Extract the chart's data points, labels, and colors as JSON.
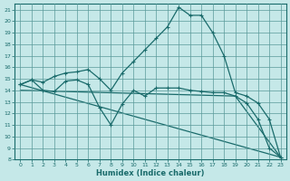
{
  "xlabel": "Humidex (Indice chaleur)",
  "background_color": "#c5e8e8",
  "grid_color": "#5a9a9a",
  "line_color": "#1a6b6b",
  "xlim": [
    -0.5,
    23.5
  ],
  "ylim": [
    8,
    21.5
  ],
  "yticks": [
    8,
    9,
    10,
    11,
    12,
    13,
    14,
    15,
    16,
    17,
    18,
    19,
    20,
    21
  ],
  "xticks": [
    0,
    1,
    2,
    3,
    4,
    5,
    6,
    7,
    8,
    9,
    10,
    11,
    12,
    13,
    14,
    15,
    16,
    17,
    18,
    19,
    20,
    21,
    22,
    23
  ],
  "series1_x": [
    0,
    1,
    2,
    3,
    4,
    5,
    6,
    7,
    8,
    9,
    10,
    11,
    12,
    13,
    14,
    15,
    16,
    17,
    18,
    19,
    20,
    21,
    22,
    23
  ],
  "series1_y": [
    14.5,
    14.9,
    14.0,
    13.9,
    14.8,
    14.9,
    14.5,
    12.5,
    11.0,
    12.8,
    14.0,
    13.5,
    14.2,
    14.2,
    14.2,
    14.0,
    13.9,
    13.8,
    13.8,
    13.5,
    12.9,
    11.5,
    9.0,
    8.2
  ],
  "series2_x": [
    0,
    1,
    2,
    3,
    4,
    5,
    6,
    7,
    8,
    9,
    10,
    11,
    12,
    13,
    14,
    15,
    16,
    17,
    18,
    19,
    20,
    21,
    22,
    23
  ],
  "series2_y": [
    14.5,
    14.9,
    14.7,
    15.2,
    15.5,
    15.6,
    15.8,
    15.0,
    14.0,
    15.5,
    16.5,
    17.5,
    18.5,
    19.5,
    21.2,
    20.5,
    20.5,
    19.0,
    17.0,
    13.8,
    13.5,
    12.9,
    11.5,
    8.2
  ],
  "series3_x": [
    0,
    23
  ],
  "series3_y": [
    14.5,
    8.2
  ],
  "series4_x": [
    0,
    19,
    23
  ],
  "series4_y": [
    14.0,
    13.5,
    8.2
  ]
}
